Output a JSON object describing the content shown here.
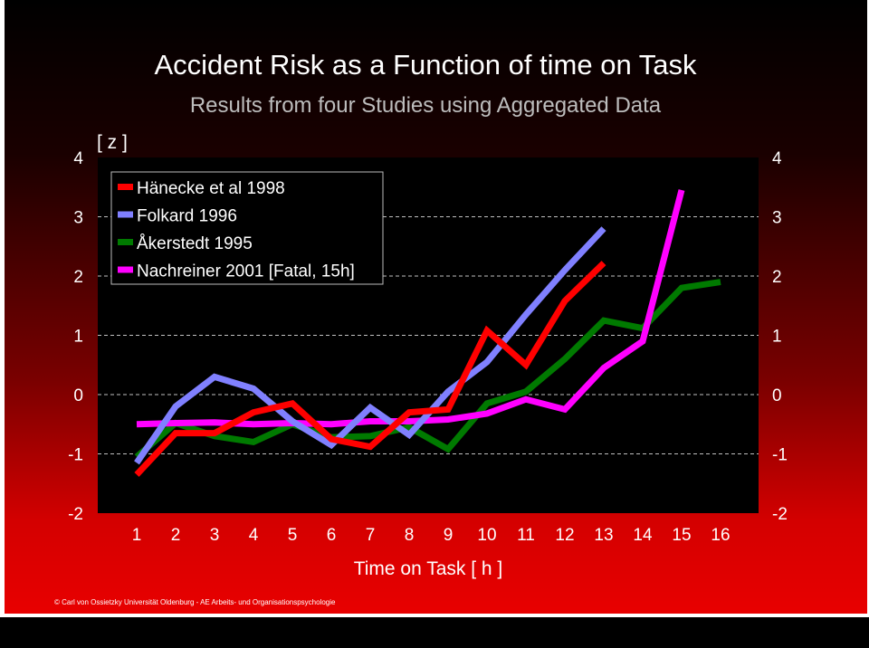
{
  "colors": {
    "hanecke": "#ff0000",
    "folkard": "#8080ff",
    "akerstedt": "#007a00",
    "nachreiner": "#ff00ff",
    "gridline": "#c0c0c0",
    "plot_bg": "#000000"
  },
  "chart_data": {
    "type": "line",
    "title": "Accident Risk as a Function of time on Task",
    "subtitle": "Results from four Studies using Aggregated Data",
    "ylabel": "[ z ]",
    "xlabel": "Time on Task  [ h ]",
    "ylim": [
      -2,
      4
    ],
    "xlim": [
      1,
      16
    ],
    "yticks": [
      4,
      3,
      2,
      1,
      0,
      -1,
      -2
    ],
    "yticks_right": [
      4,
      3,
      2,
      1,
      0,
      -1,
      -2
    ],
    "xticks": [
      1,
      2,
      3,
      4,
      5,
      6,
      7,
      8,
      9,
      10,
      11,
      12,
      13,
      14,
      15,
      16
    ],
    "grid": "horizontal-dashed",
    "legend_position": "top-left",
    "series": [
      {
        "name": "Hänecke et al 1998",
        "color_key": "hanecke",
        "x": [
          1,
          2,
          3,
          4,
          5,
          6,
          7,
          8,
          9,
          10,
          11,
          12,
          13
        ],
        "y": [
          -1.35,
          -0.65,
          -0.65,
          -0.3,
          -0.15,
          -0.75,
          -0.88,
          -0.3,
          -0.25,
          1.08,
          0.5,
          1.58,
          2.22
        ]
      },
      {
        "name": "Folkard 1996",
        "color_key": "folkard",
        "x": [
          1,
          2,
          3,
          4,
          5,
          6,
          7,
          8,
          9,
          10,
          11,
          12,
          13
        ],
        "y": [
          -1.15,
          -0.2,
          0.3,
          0.1,
          -0.45,
          -0.85,
          -0.22,
          -0.68,
          0.05,
          0.55,
          1.35,
          2.1,
          2.8
        ]
      },
      {
        "name": "Åkerstedt 1995",
        "color_key": "akerstedt",
        "x": [
          1,
          2,
          3,
          4,
          5,
          6,
          7,
          8,
          9,
          10,
          11,
          12,
          13,
          14,
          15,
          16
        ],
        "y": [
          -1.05,
          -0.48,
          -0.7,
          -0.8,
          -0.5,
          -0.72,
          -0.7,
          -0.55,
          -0.92,
          -0.15,
          0.05,
          0.6,
          1.25,
          1.12,
          1.8,
          1.9
        ]
      },
      {
        "name": "Nachreiner 2001 [Fatal, 15h]",
        "color_key": "nachreiner",
        "x": [
          1,
          2,
          3,
          4,
          5,
          6,
          7,
          8,
          9,
          10,
          11,
          12,
          13,
          14,
          15
        ],
        "y": [
          -0.5,
          -0.48,
          -0.47,
          -0.5,
          -0.48,
          -0.5,
          -0.45,
          -0.45,
          -0.42,
          -0.32,
          -0.08,
          -0.25,
          0.45,
          0.9,
          3.45
        ]
      }
    ]
  },
  "copyright": "© Carl von Ossietzky Universität Oldenburg - AE Arbeits- und Organisationspsychologie"
}
